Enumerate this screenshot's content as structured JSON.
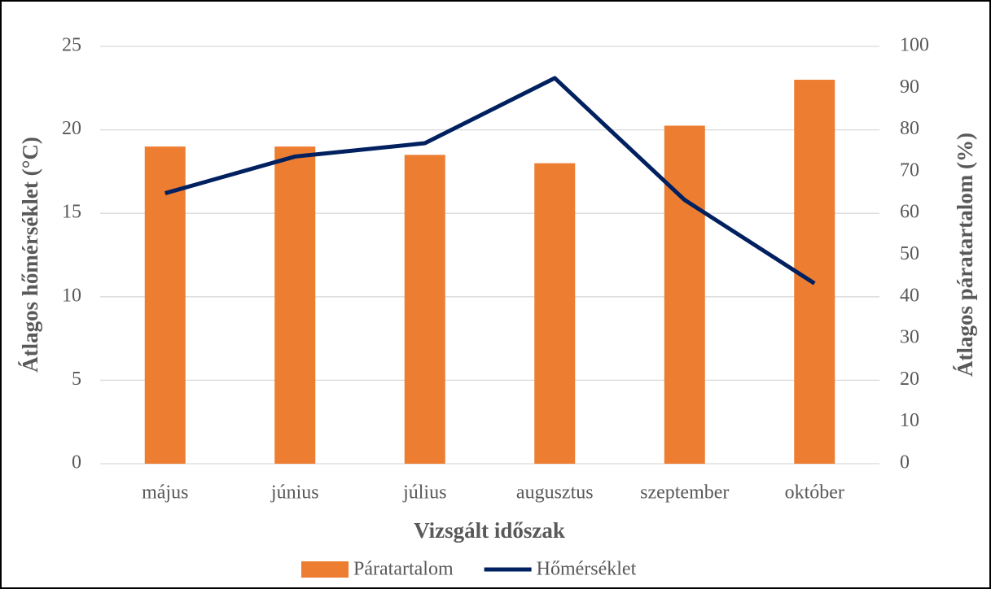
{
  "chart_data": {
    "type": "bar-line",
    "categories": [
      "május",
      "június",
      "július",
      "augusztus",
      "szeptember",
      "október"
    ],
    "series": [
      {
        "name": "Páratartalom",
        "type": "bar",
        "axis": "y2",
        "color": "#ed7d31",
        "values": [
          76,
          76,
          74,
          72,
          81,
          92
        ]
      },
      {
        "name": "Hőmérséklet",
        "type": "line",
        "axis": "y",
        "color": "#002060",
        "values": [
          16.2,
          18.4,
          19.2,
          23.1,
          15.8,
          10.8
        ]
      }
    ],
    "ylabel": "Átlagos hőmérséklet (°C)",
    "y2label": "Átlagos páratartalom (%)",
    "xlabel": "Vizsgált időszak",
    "ylim": [
      0,
      25
    ],
    "yticks": [
      0,
      5,
      10,
      15,
      20,
      25
    ],
    "y2lim": [
      0,
      100
    ],
    "y2ticks": [
      0,
      10,
      20,
      30,
      40,
      50,
      60,
      70,
      80,
      90,
      100
    ],
    "grid": true,
    "legend": "bottom"
  }
}
